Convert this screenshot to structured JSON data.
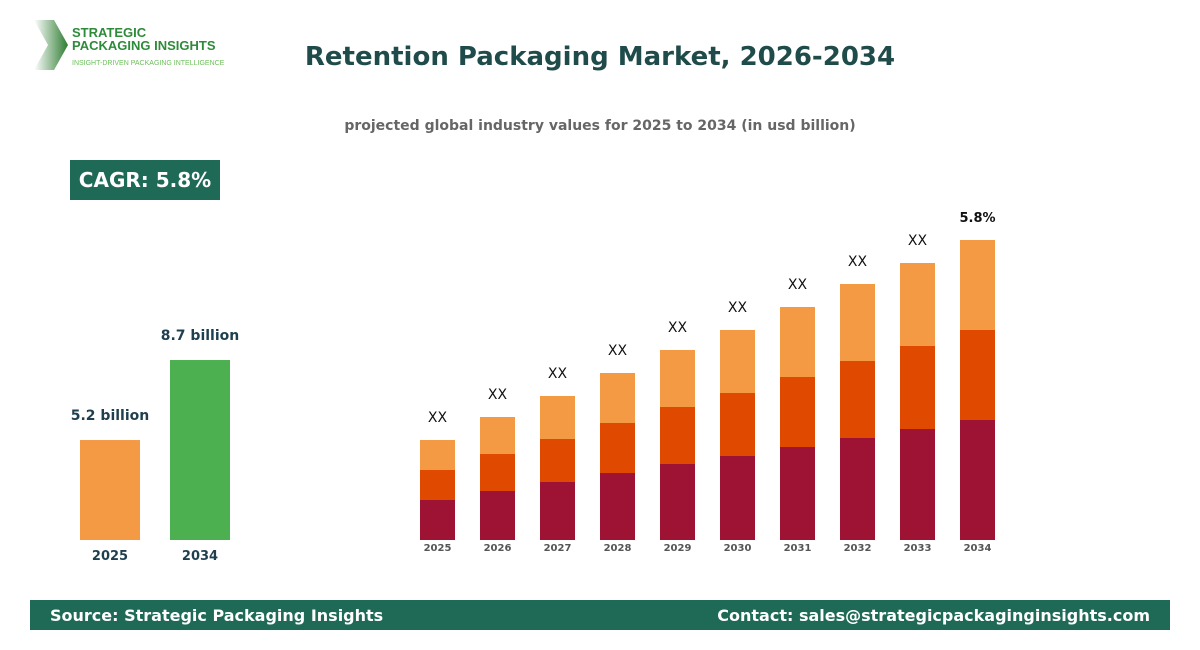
{
  "logo": {
    "line1": "STRATEGIC",
    "line2": "PACKAGING INSIGHTS",
    "tagline": "INSIGHT-DRIVEN PACKAGING INTELLIGENCE"
  },
  "title": "Retention Packaging Market, 2026-2034",
  "subtitle": "projected global industry values for 2025 to 2034 (in usd billion)",
  "cagr": "CAGR: 5.8%",
  "chart_data": [
    {
      "type": "bar",
      "categories": [
        "2025",
        "2034"
      ],
      "values": [
        5.2,
        8.7
      ],
      "data_labels": [
        "5.2 billion",
        "8.7 billion"
      ],
      "colors": [
        "#f49a45",
        "#4caf50"
      ]
    },
    {
      "type": "bar",
      "stacked": true,
      "categories": [
        "2025",
        "2026",
        "2027",
        "2028",
        "2029",
        "2030",
        "2031",
        "2032",
        "2033",
        "2034"
      ],
      "series": [
        {
          "values": [
            4.0,
            4.9,
            5.8,
            6.7,
            7.6,
            8.4,
            9.3,
            10.2,
            11.1,
            12.0
          ],
          "color": "#9e1233"
        },
        {
          "values": [
            3.0,
            3.7,
            4.3,
            5.0,
            5.7,
            6.3,
            7.0,
            7.7,
            8.3,
            9.0
          ],
          "color": "#e04a00"
        },
        {
          "values": [
            3.0,
            3.7,
            4.3,
            5.0,
            5.7,
            6.3,
            7.0,
            7.7,
            8.3,
            9.0
          ],
          "color": "#f49a45"
        }
      ],
      "data_labels": [
        "XX",
        "XX",
        "XX",
        "XX",
        "XX",
        "XX",
        "XX",
        "XX",
        "XX",
        "5.8%"
      ]
    }
  ],
  "footer": {
    "source": "Source: Strategic Packaging Insights",
    "contact": "Contact: sales@strategicpackaginginsights.com"
  }
}
